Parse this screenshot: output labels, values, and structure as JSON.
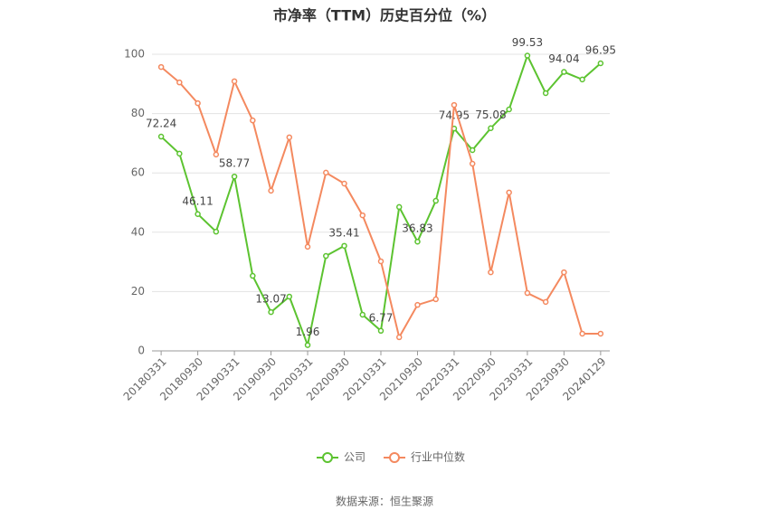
{
  "chart_data": {
    "type": "line",
    "title": "市净率（TTM）历史百分位（%）",
    "source": "数据来源：恒生聚源",
    "categories": [
      "20180331",
      null,
      "20180930",
      null,
      "20190331",
      null,
      "20190930",
      null,
      "20200331",
      null,
      "20200930",
      null,
      "20210331",
      null,
      "20210930",
      null,
      "20220331",
      null,
      "20220930",
      null,
      "20230331",
      null,
      "20230930",
      null,
      "20240129"
    ],
    "series": [
      {
        "name": "公司",
        "color": "#5cc330",
        "values": [
          72.24,
          66.5,
          46.11,
          40.2,
          58.77,
          25.3,
          13.07,
          18.3,
          1.96,
          32.0,
          35.41,
          12.2,
          6.77,
          48.5,
          36.83,
          50.6,
          74.95,
          67.7,
          75.08,
          81.4,
          99.53,
          86.9,
          94.04,
          91.5,
          96.95
        ],
        "value_labels": [
          "72.24",
          null,
          "46.11",
          null,
          "58.77",
          null,
          "13.07",
          null,
          "1.96",
          null,
          "35.41",
          null,
          "6.77",
          null,
          "36.83",
          null,
          "74.95",
          null,
          "75.08",
          null,
          "99.53",
          null,
          "94.04",
          null,
          "96.95"
        ]
      },
      {
        "name": "行业中位数",
        "color": "#f4895f",
        "values": [
          95.7,
          90.5,
          83.5,
          66.2,
          90.9,
          77.7,
          54.0,
          72.0,
          35.1,
          60.1,
          56.4,
          45.7,
          30.2,
          4.6,
          15.5,
          17.4,
          82.9,
          63.1,
          26.5,
          53.4,
          19.5,
          16.5,
          26.5,
          5.8,
          5.8
        ]
      }
    ],
    "ylim": [
      0,
      100
    ],
    "yticks": [
      0,
      20,
      40,
      60,
      80,
      100
    ],
    "grid": true,
    "legend": "bottom"
  }
}
